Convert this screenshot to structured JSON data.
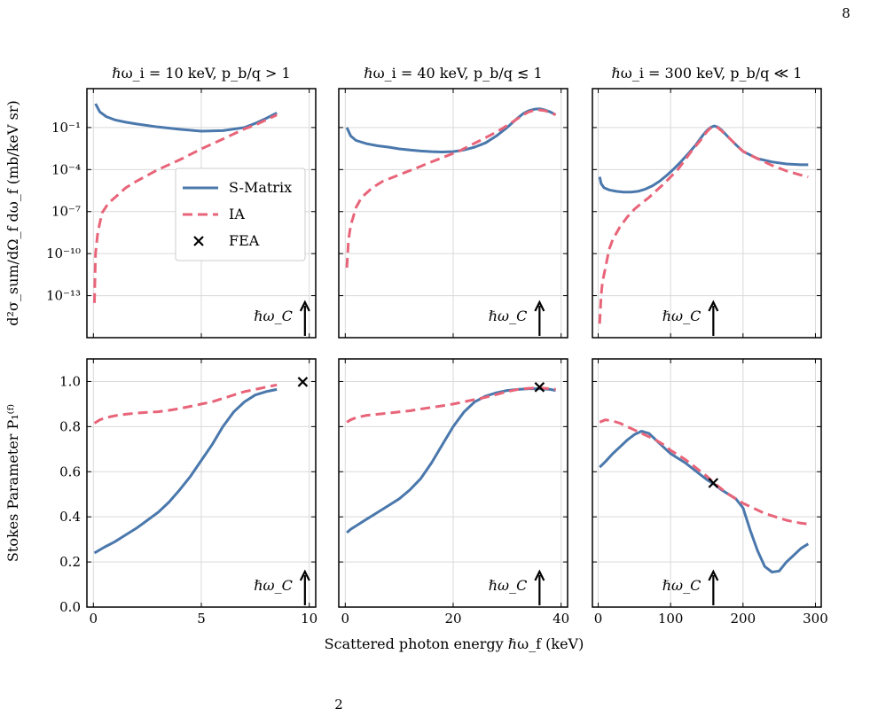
{
  "page_number": "8",
  "footer_fragment": "2",
  "shared_xlabel": "Scattered photon energy ℏω_f (keV)",
  "legend": {
    "position": "center",
    "entries": [
      "S-Matrix",
      "IA",
      "FEA"
    ]
  },
  "colors": {
    "smatrix": "#4a78ac",
    "ia": "#e86479",
    "fea": "#000000",
    "grid": "#d9d9d9"
  },
  "annotation_label": "ℏω_C",
  "chart_data": [
    {
      "type": "line",
      "panel": "top-1",
      "title": "ℏω_i = 10 keV, p_b/q > 1",
      "ylabel": "d²σ_sum/dΩ_f dω_f (mb/keV sr)",
      "yscale": "log",
      "xlim": [
        -0.3,
        10.3
      ],
      "ylim": [
        1e-16,
        60
      ],
      "xticks": [
        0,
        5,
        10
      ],
      "yticks": [
        1e-13,
        1e-10,
        1e-07,
        0.0001,
        0.1
      ],
      "ytick_labels": [
        "10⁻¹³",
        "10⁻¹⁰",
        "10⁻⁷",
        "10⁻⁴",
        "10⁻¹"
      ],
      "compton_energy": 9.8,
      "series": [
        {
          "name": "S-Matrix",
          "x": [
            0.1,
            0.3,
            0.6,
            1,
            1.5,
            2,
            3,
            4,
            5,
            6,
            7,
            7.5,
            8,
            8.5
          ],
          "y": [
            5,
            1.3,
            0.6,
            0.35,
            0.24,
            0.18,
            0.11,
            0.075,
            0.055,
            0.06,
            0.1,
            0.2,
            0.45,
            1.1
          ]
        },
        {
          "name": "IA",
          "x": [
            0.05,
            0.1,
            0.2,
            0.4,
            0.7,
            1,
            1.5,
            2,
            3,
            4,
            5,
            6,
            7,
            7.5,
            8,
            8.5
          ],
          "y": [
            3e-14,
            1e-10,
            3e-09,
            8e-08,
            4e-07,
            1e-06,
            5e-06,
            1.5e-05,
            0.0001,
            0.0005,
            0.003,
            0.015,
            0.08,
            0.15,
            0.35,
            0.8
          ]
        }
      ]
    },
    {
      "type": "line",
      "panel": "top-2",
      "title": "ℏω_i = 40 keV, p_b/q ≲ 1",
      "yscale": "log",
      "xlim": [
        -1.2,
        41.2
      ],
      "ylim": [
        1e-16,
        60
      ],
      "xticks": [
        0,
        20,
        40
      ],
      "yticks": [
        1e-13,
        1e-10,
        1e-07,
        0.0001,
        0.1
      ],
      "compton_energy": 36,
      "series": [
        {
          "name": "S-Matrix",
          "x": [
            0.3,
            1,
            2,
            4,
            6,
            8,
            10,
            12,
            14,
            16,
            18,
            20,
            22,
            24,
            26,
            28,
            30,
            32,
            33,
            34,
            35,
            36,
            37,
            38,
            39
          ],
          "y": [
            0.1,
            0.025,
            0.012,
            0.007,
            0.005,
            0.004,
            0.003,
            0.0025,
            0.0021,
            0.0019,
            0.0018,
            0.0019,
            0.0025,
            0.004,
            0.008,
            0.025,
            0.1,
            0.5,
            1.0,
            1.6,
            2.0,
            2.2,
            1.8,
            1.3,
            0.8
          ]
        },
        {
          "name": "IA",
          "x": [
            0.3,
            0.6,
            1,
            2,
            3,
            5,
            7,
            9,
            11,
            13,
            15,
            17,
            19,
            21,
            23,
            25,
            27,
            29,
            31,
            33,
            34,
            35,
            36,
            37,
            38,
            39
          ],
          "y": [
            1e-11,
            1e-09,
            1e-08,
            2e-07,
            1e-06,
            5e-06,
            1.5e-05,
            3e-05,
            6e-05,
            0.00012,
            0.00025,
            0.0005,
            0.001,
            0.002,
            0.005,
            0.012,
            0.03,
            0.08,
            0.25,
            0.8,
            1.3,
            1.7,
            1.8,
            1.6,
            1.2,
            0.8
          ]
        }
      ]
    },
    {
      "type": "line",
      "panel": "top-3",
      "title": "ℏω_i = 300 keV, p_b/q ≪ 1",
      "yscale": "log",
      "xlim": [
        -8,
        308
      ],
      "ylim": [
        1e-16,
        60
      ],
      "xticks": [
        0,
        100,
        200,
        300
      ],
      "yticks": [
        1e-13,
        1e-10,
        1e-07,
        0.0001,
        0.1
      ],
      "compton_energy": 159,
      "series": [
        {
          "name": "S-Matrix",
          "x": [
            2,
            4,
            8,
            15,
            25,
            35,
            45,
            55,
            65,
            75,
            85,
            95,
            105,
            115,
            125,
            135,
            145,
            150,
            155,
            160,
            165,
            170,
            180,
            190,
            200,
            220,
            240,
            260,
            280,
            290
          ],
          "y": [
            3e-05,
            1e-05,
            5e-06,
            3.5e-06,
            2.8e-06,
            2.5e-06,
            2.5e-06,
            2.8e-06,
            4e-06,
            7e-06,
            1.5e-05,
            4e-05,
            0.00012,
            0.0004,
            0.0015,
            0.006,
            0.03,
            0.06,
            0.1,
            0.13,
            0.11,
            0.07,
            0.02,
            0.006,
            0.002,
            0.0006,
            0.00035,
            0.00025,
            0.00022,
            0.00022
          ]
        },
        {
          "name": "IA",
          "x": [
            2,
            4,
            6,
            10,
            15,
            20,
            30,
            40,
            50,
            60,
            70,
            80,
            90,
            100,
            110,
            120,
            130,
            140,
            150,
            155,
            160,
            165,
            170,
            180,
            190,
            200,
            220,
            240,
            260,
            280,
            290
          ],
          "y": [
            1e-15,
            1e-13,
            1e-12,
            1e-11,
            2e-10,
            1e-09,
            8e-09,
            4e-08,
            1.5e-07,
            4e-07,
            1e-06,
            3e-06,
            9e-06,
            3e-05,
            0.0001,
            0.0005,
            0.0025,
            0.01,
            0.05,
            0.09,
            0.12,
            0.1,
            0.06,
            0.02,
            0.006,
            0.002,
            0.0006,
            0.0002,
            8e-05,
            4e-05,
            3e-05
          ]
        }
      ]
    },
    {
      "type": "line",
      "panel": "bottom-1",
      "ylabel": "Stokes Parameter P₁⁽ᶠ⁾",
      "yscale": "linear",
      "xlim": [
        -0.3,
        10.3
      ],
      "ylim": [
        0,
        1.1
      ],
      "xticks": [
        0,
        5,
        10
      ],
      "yticks": [
        0,
        0.2,
        0.4,
        0.6,
        0.8,
        1.0
      ],
      "ytick_labels": [
        "0.0",
        "0.2",
        "0.4",
        "0.6",
        "0.8",
        "1.0"
      ],
      "compton_energy": 9.8,
      "series": [
        {
          "name": "S-Matrix",
          "x": [
            0.05,
            0.5,
            1,
            1.5,
            2,
            2.5,
            3,
            3.5,
            4,
            4.5,
            5,
            5.5,
            6,
            6.5,
            7,
            7.5,
            8,
            8.5
          ],
          "y": [
            0.24,
            0.265,
            0.29,
            0.32,
            0.35,
            0.385,
            0.42,
            0.465,
            0.52,
            0.58,
            0.65,
            0.72,
            0.8,
            0.865,
            0.91,
            0.94,
            0.955,
            0.965
          ]
        },
        {
          "name": "IA",
          "x": [
            0.05,
            0.3,
            0.6,
            1,
            1.5,
            2,
            2.5,
            3,
            3.5,
            4,
            4.5,
            5,
            5.5,
            6,
            6.5,
            7,
            7.5,
            8,
            8.5
          ],
          "y": [
            0.815,
            0.83,
            0.84,
            0.848,
            0.855,
            0.86,
            0.863,
            0.866,
            0.872,
            0.88,
            0.89,
            0.9,
            0.91,
            0.925,
            0.94,
            0.955,
            0.965,
            0.975,
            0.985
          ]
        },
        {
          "name": "FEA",
          "x": [
            9.7
          ],
          "y": [
            0.998
          ]
        }
      ]
    },
    {
      "type": "line",
      "panel": "bottom-2",
      "yscale": "linear",
      "xlim": [
        -1.2,
        41.2
      ],
      "ylim": [
        0,
        1.1
      ],
      "xticks": [
        0,
        20,
        40
      ],
      "yticks": [
        0,
        0.2,
        0.4,
        0.6,
        0.8,
        1.0
      ],
      "compton_energy": 36,
      "series": [
        {
          "name": "S-Matrix",
          "x": [
            0.3,
            1,
            2,
            4,
            6,
            8,
            10,
            12,
            14,
            16,
            18,
            20,
            22,
            24,
            26,
            28,
            30,
            32,
            34,
            36,
            38,
            39
          ],
          "y": [
            0.33,
            0.345,
            0.36,
            0.39,
            0.42,
            0.45,
            0.48,
            0.52,
            0.57,
            0.64,
            0.72,
            0.8,
            0.865,
            0.91,
            0.935,
            0.95,
            0.96,
            0.965,
            0.968,
            0.968,
            0.965,
            0.96
          ]
        },
        {
          "name": "IA",
          "x": [
            0.3,
            1,
            2,
            4,
            6,
            8,
            10,
            12,
            14,
            16,
            18,
            20,
            22,
            24,
            26,
            28,
            30,
            32,
            34,
            36,
            38,
            39
          ],
          "y": [
            0.82,
            0.83,
            0.84,
            0.85,
            0.855,
            0.86,
            0.865,
            0.87,
            0.878,
            0.885,
            0.892,
            0.9,
            0.91,
            0.92,
            0.93,
            0.942,
            0.955,
            0.965,
            0.97,
            0.972,
            0.968,
            0.965
          ]
        },
        {
          "name": "FEA",
          "x": [
            36
          ],
          "y": [
            0.975
          ]
        }
      ]
    },
    {
      "type": "line",
      "panel": "bottom-3",
      "yscale": "linear",
      "xlim": [
        -8,
        308
      ],
      "ylim": [
        0,
        1.1
      ],
      "xticks": [
        0,
        100,
        200,
        300
      ],
      "yticks": [
        0,
        0.2,
        0.4,
        0.6,
        0.8,
        1.0
      ],
      "compton_energy": 159,
      "series": [
        {
          "name": "S-Matrix",
          "x": [
            2,
            10,
            20,
            30,
            40,
            50,
            60,
            70,
            80,
            90,
            100,
            110,
            120,
            130,
            140,
            150,
            160,
            170,
            180,
            190,
            200,
            210,
            220,
            230,
            240,
            250,
            260,
            270,
            280,
            290
          ],
          "y": [
            0.62,
            0.645,
            0.68,
            0.71,
            0.74,
            0.765,
            0.78,
            0.77,
            0.74,
            0.71,
            0.68,
            0.66,
            0.64,
            0.615,
            0.59,
            0.565,
            0.545,
            0.52,
            0.5,
            0.48,
            0.44,
            0.34,
            0.25,
            0.18,
            0.155,
            0.16,
            0.2,
            0.23,
            0.26,
            0.28
          ]
        },
        {
          "name": "IA",
          "x": [
            2,
            10,
            20,
            30,
            40,
            50,
            60,
            70,
            80,
            90,
            100,
            110,
            120,
            130,
            140,
            150,
            160,
            170,
            180,
            190,
            200,
            210,
            220,
            230,
            240,
            250,
            260,
            270,
            280,
            290
          ],
          "y": [
            0.82,
            0.83,
            0.825,
            0.815,
            0.8,
            0.785,
            0.77,
            0.755,
            0.74,
            0.72,
            0.695,
            0.675,
            0.655,
            0.63,
            0.605,
            0.58,
            0.55,
            0.525,
            0.5,
            0.48,
            0.46,
            0.445,
            0.43,
            0.415,
            0.405,
            0.395,
            0.385,
            0.378,
            0.372,
            0.368
          ]
        },
        {
          "name": "FEA",
          "x": [
            159
          ],
          "y": [
            0.55
          ]
        }
      ]
    }
  ]
}
